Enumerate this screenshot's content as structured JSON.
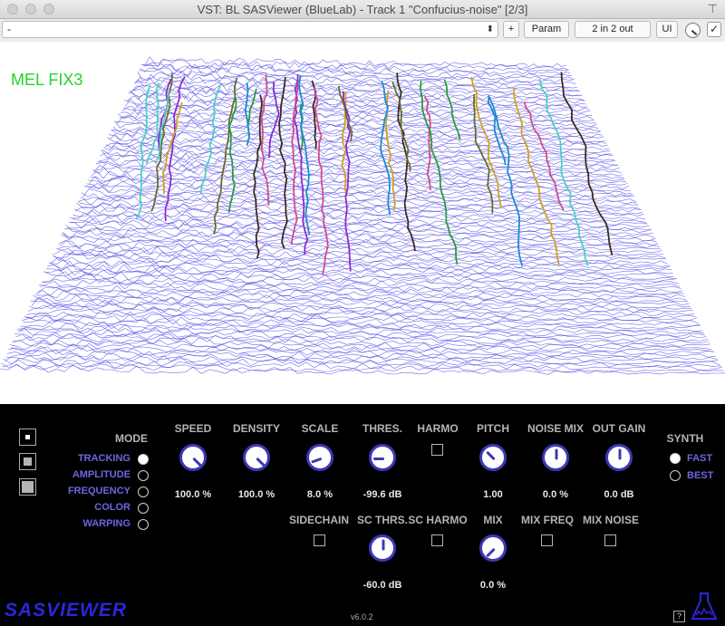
{
  "window": {
    "title": "VST: BL SASViewer (BlueLab) - Track 1 \"Confucius-noise\" [2/3]"
  },
  "toolbar": {
    "preset_value": "-",
    "add_label": "+",
    "param_label": "Param",
    "io_label": "2 in 2 out",
    "ui_label": "UI",
    "check_glyph": "✓"
  },
  "view": {
    "mode_label": "MEL FIX3"
  },
  "panel": {
    "mode_title": "MODE",
    "modes": [
      "TRACKING",
      "AMPLITUDE",
      "FREQUENCY",
      "COLOR",
      "WARPING"
    ],
    "selected_mode": "TRACKING",
    "knobs": [
      {
        "label": "SPEED",
        "value": "100.0 %"
      },
      {
        "label": "DENSITY",
        "value": "100.0 %"
      },
      {
        "label": "SCALE",
        "value": "8.0 %"
      },
      {
        "label": "THRES.",
        "value": "-99.6 dB"
      },
      {
        "label": "PITCH",
        "value": "1.00"
      },
      {
        "label": "NOISE MIX",
        "value": "0.0 %"
      },
      {
        "label": "OUT GAIN",
        "value": "0.0 dB"
      },
      {
        "label": "SC THRS.",
        "value": "-60.0 dB"
      },
      {
        "label": "MIX",
        "value": "0.0 %"
      }
    ],
    "checkboxes": {
      "harmo": "HARMO",
      "sidechain": "SIDECHAIN",
      "sc_harmo": "SC HARMO",
      "mix_freq": "MIX FREQ",
      "mix_noise": "MIX NOISE"
    },
    "synth_title": "SYNTH",
    "synth_options": [
      "FAST",
      "BEST"
    ],
    "selected_synth": "FAST",
    "logo": "SASVIEWER",
    "version": "v6.0.2",
    "help": "?"
  },
  "colors": {
    "accent": "#3c38b8",
    "mode_label": "#21d42c",
    "wire": "#4c46e6",
    "logo": "#2b27d8"
  }
}
